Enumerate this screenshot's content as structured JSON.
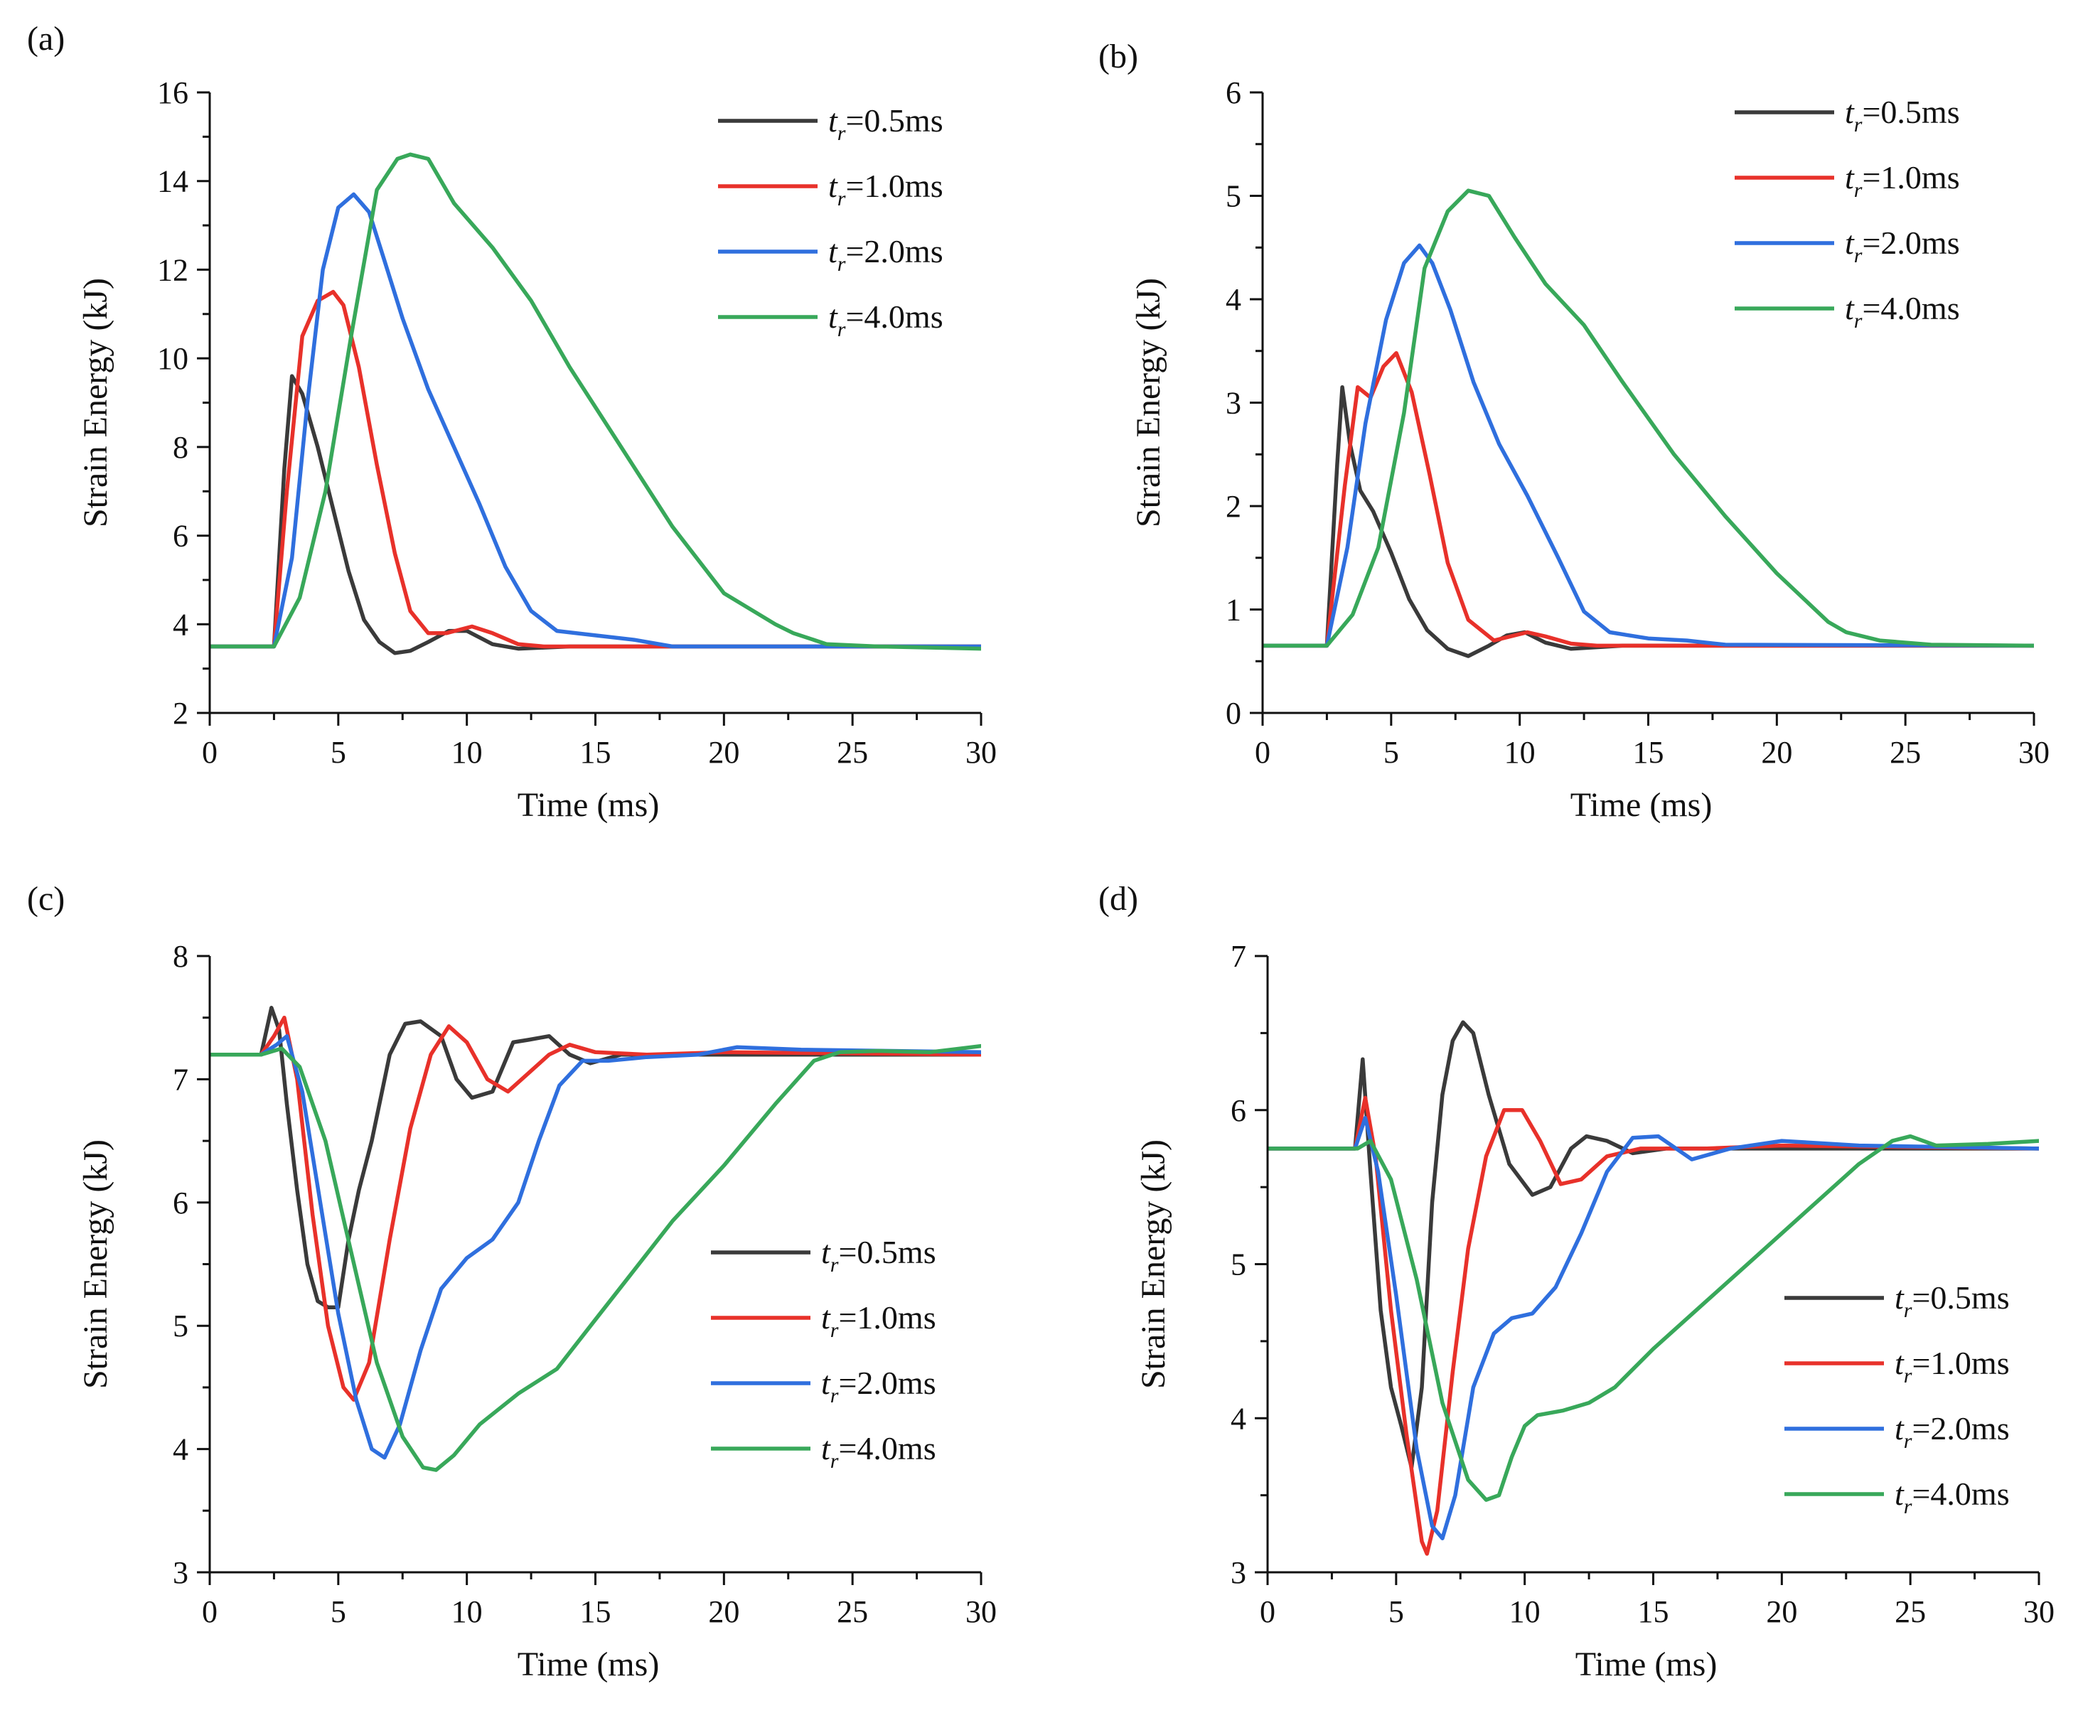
{
  "figure": {
    "colors": {
      "0.5": "#3a3a3a",
      "1.0": "#e8312a",
      "2.0": "#2f6fde",
      "4.0": "#38a85a"
    }
  },
  "chart_data": [
    {
      "type": "line",
      "panel_label": "(a)",
      "xlabel": "Time (ms)",
      "ylabel": "Strain Energy (kJ)",
      "xlim": [
        0,
        30
      ],
      "ylim": [
        2,
        16
      ],
      "xticks": [
        0,
        5,
        10,
        15,
        20,
        25,
        30
      ],
      "yticks": [
        2,
        4,
        6,
        8,
        10,
        12,
        14,
        16
      ],
      "legend_position": "top-right",
      "series": [
        {
          "name": "tr=0.5ms",
          "legend_var": "t",
          "legend_sub": "r",
          "legend_value": "=0.5ms",
          "color": "#3a3a3a",
          "x": [
            0,
            2.5,
            2.9,
            3.2,
            3.6,
            4.2,
            4.8,
            5.4,
            6.0,
            6.6,
            7.2,
            7.8,
            8.5,
            9.3,
            10.0,
            11.0,
            12.0,
            14.0,
            18.0,
            25.0,
            30.0
          ],
          "y": [
            3.5,
            3.5,
            7.5,
            9.6,
            9.2,
            8.0,
            6.6,
            5.2,
            4.1,
            3.6,
            3.35,
            3.4,
            3.6,
            3.85,
            3.85,
            3.55,
            3.45,
            3.5,
            3.5,
            3.5,
            3.5
          ]
        },
        {
          "name": "tr=1.0ms",
          "legend_var": "t",
          "legend_sub": "r",
          "legend_value": "=1.0ms",
          "color": "#e8312a",
          "x": [
            0,
            2.5,
            3.0,
            3.6,
            4.2,
            4.8,
            5.2,
            5.8,
            6.5,
            7.2,
            7.8,
            8.5,
            9.2,
            10.2,
            11.0,
            12.0,
            13.0,
            15.0,
            20.0,
            30.0
          ],
          "y": [
            3.5,
            3.5,
            7.0,
            10.5,
            11.3,
            11.5,
            11.2,
            9.8,
            7.6,
            5.6,
            4.3,
            3.8,
            3.8,
            3.95,
            3.8,
            3.55,
            3.5,
            3.5,
            3.5,
            3.5
          ]
        },
        {
          "name": "tr=2.0ms",
          "legend_var": "t",
          "legend_sub": "r",
          "legend_value": "=2.0ms",
          "color": "#2f6fde",
          "x": [
            0,
            2.5,
            3.2,
            3.8,
            4.4,
            5.0,
            5.6,
            6.2,
            6.8,
            7.5,
            8.5,
            9.5,
            10.5,
            11.5,
            12.5,
            13.5,
            15.0,
            16.5,
            18.0,
            30.0
          ],
          "y": [
            3.5,
            3.5,
            5.5,
            9.0,
            12.0,
            13.4,
            13.7,
            13.3,
            12.2,
            10.9,
            9.3,
            8.0,
            6.7,
            5.3,
            4.3,
            3.85,
            3.75,
            3.65,
            3.5,
            3.5
          ]
        },
        {
          "name": "tr=4.0ms",
          "legend_var": "t",
          "legend_sub": "r",
          "legend_value": "=4.0ms",
          "color": "#38a85a",
          "x": [
            0,
            2.5,
            3.5,
            4.5,
            5.5,
            6.5,
            7.3,
            7.8,
            8.5,
            9.5,
            11.0,
            12.5,
            14.0,
            16.0,
            18.0,
            20.0,
            22.0,
            22.7,
            24.0,
            26.0,
            30.0
          ],
          "y": [
            3.5,
            3.5,
            4.6,
            7.0,
            10.5,
            13.8,
            14.5,
            14.6,
            14.5,
            13.5,
            12.5,
            11.3,
            9.8,
            8.0,
            6.2,
            4.7,
            4.0,
            3.8,
            3.55,
            3.5,
            3.45
          ]
        }
      ]
    },
    {
      "type": "line",
      "panel_label": "(b)",
      "xlabel": "Time (ms)",
      "ylabel": "Strain Energy (kJ)",
      "xlim": [
        0,
        30
      ],
      "ylim": [
        0,
        6
      ],
      "xticks": [
        0,
        5,
        10,
        15,
        20,
        25,
        30
      ],
      "yticks": [
        0,
        1,
        2,
        3,
        4,
        5,
        6
      ],
      "legend_position": "top-right",
      "series": [
        {
          "name": "tr=0.5ms",
          "legend_var": "t",
          "legend_sub": "r",
          "legend_value": "=0.5ms",
          "color": "#3a3a3a",
          "x": [
            0,
            2.5,
            2.9,
            3.1,
            3.4,
            3.8,
            4.3,
            5.0,
            5.7,
            6.4,
            7.2,
            8.0,
            8.8,
            9.5,
            10.2,
            11.0,
            12.0,
            14.0,
            20.0,
            30.0
          ],
          "y": [
            0.65,
            0.65,
            2.4,
            3.15,
            2.6,
            2.15,
            1.95,
            1.55,
            1.1,
            0.8,
            0.62,
            0.55,
            0.65,
            0.75,
            0.78,
            0.68,
            0.62,
            0.65,
            0.65,
            0.65
          ]
        },
        {
          "name": "tr=1.0ms",
          "legend_var": "t",
          "legend_sub": "r",
          "legend_value": "=1.0ms",
          "color": "#e8312a",
          "x": [
            0,
            2.5,
            3.2,
            3.7,
            4.2,
            4.7,
            5.2,
            5.8,
            6.5,
            7.2,
            8.0,
            9.0,
            10.3,
            11.0,
            12.0,
            13.0,
            15.0,
            30.0
          ],
          "y": [
            0.65,
            0.65,
            2.2,
            3.15,
            3.05,
            3.35,
            3.48,
            3.1,
            2.3,
            1.45,
            0.9,
            0.7,
            0.78,
            0.74,
            0.67,
            0.65,
            0.65,
            0.65
          ]
        },
        {
          "name": "tr=2.0ms",
          "legend_var": "t",
          "legend_sub": "r",
          "legend_value": "=2.0ms",
          "color": "#2f6fde",
          "x": [
            0,
            2.5,
            3.3,
            4.0,
            4.8,
            5.5,
            6.1,
            6.6,
            7.3,
            8.2,
            9.2,
            10.3,
            11.5,
            12.5,
            13.5,
            15.0,
            16.5,
            18.0,
            30.0
          ],
          "y": [
            0.65,
            0.65,
            1.6,
            2.8,
            3.8,
            4.35,
            4.52,
            4.35,
            3.9,
            3.2,
            2.6,
            2.1,
            1.5,
            0.98,
            0.78,
            0.72,
            0.7,
            0.66,
            0.65
          ]
        },
        {
          "name": "tr=4.0ms",
          "legend_var": "t",
          "legend_sub": "r",
          "legend_value": "=4.0ms",
          "color": "#38a85a",
          "x": [
            0,
            2.5,
            3.5,
            4.5,
            5.5,
            6.3,
            7.2,
            8.0,
            8.8,
            9.8,
            11.0,
            12.5,
            14.0,
            16.0,
            18.0,
            20.0,
            22.0,
            22.7,
            24.0,
            26.0,
            30.0
          ],
          "y": [
            0.65,
            0.65,
            0.95,
            1.6,
            2.9,
            4.3,
            4.85,
            5.05,
            5.0,
            4.6,
            4.15,
            3.75,
            3.2,
            2.5,
            1.9,
            1.35,
            0.88,
            0.78,
            0.7,
            0.66,
            0.65
          ]
        }
      ]
    },
    {
      "type": "line",
      "panel_label": "(c)",
      "xlabel": "Time (ms)",
      "ylabel": "Strain Energy (kJ)",
      "xlim": [
        0,
        30
      ],
      "ylim": [
        3,
        8
      ],
      "xticks": [
        0,
        5,
        10,
        15,
        20,
        25,
        30
      ],
      "yticks": [
        3,
        4,
        5,
        6,
        7,
        8
      ],
      "legend_position": "center-right",
      "series": [
        {
          "name": "tr=0.5ms",
          "legend_var": "t",
          "legend_sub": "r",
          "legend_value": "=0.5ms",
          "color": "#3a3a3a",
          "x": [
            0,
            2.0,
            2.4,
            2.7,
            3.0,
            3.4,
            3.8,
            4.2,
            4.6,
            5.0,
            5.4,
            5.8,
            6.3,
            7.0,
            7.6,
            8.2,
            9.0,
            9.6,
            10.2,
            11.0,
            11.8,
            12.4,
            13.2,
            14.0,
            14.8,
            16.0,
            18.0,
            22.0,
            30.0
          ],
          "y": [
            7.2,
            7.2,
            7.58,
            7.4,
            6.8,
            6.1,
            5.5,
            5.2,
            5.15,
            5.15,
            5.7,
            6.1,
            6.5,
            7.2,
            7.45,
            7.47,
            7.35,
            7.0,
            6.85,
            6.9,
            7.3,
            7.32,
            7.35,
            7.2,
            7.13,
            7.2,
            7.2,
            7.2,
            7.2
          ]
        },
        {
          "name": "tr=1.0ms",
          "legend_var": "t",
          "legend_sub": "r",
          "legend_value": "=1.0ms",
          "color": "#e8312a",
          "x": [
            0,
            2.0,
            2.5,
            2.9,
            3.4,
            4.0,
            4.6,
            5.2,
            5.6,
            6.2,
            7.0,
            7.8,
            8.6,
            9.3,
            10.0,
            10.8,
            11.6,
            12.4,
            13.2,
            14.0,
            15.0,
            17.0,
            20.0,
            30.0
          ],
          "y": [
            7.2,
            7.2,
            7.35,
            7.5,
            7.0,
            5.9,
            5.0,
            4.5,
            4.4,
            4.7,
            5.7,
            6.6,
            7.2,
            7.43,
            7.3,
            7.0,
            6.9,
            7.05,
            7.2,
            7.28,
            7.22,
            7.2,
            7.22,
            7.2
          ]
        },
        {
          "name": "tr=2.0ms",
          "legend_var": "t",
          "legend_sub": "r",
          "legend_value": "=2.0ms",
          "color": "#2f6fde",
          "x": [
            0,
            2.0,
            2.6,
            3.0,
            3.6,
            4.3,
            5.0,
            5.7,
            6.3,
            6.8,
            7.4,
            8.2,
            9.0,
            10.0,
            11.0,
            12.0,
            12.8,
            13.6,
            14.5,
            15.5,
            17.0,
            19.0,
            20.5,
            23.0,
            30.0
          ],
          "y": [
            7.2,
            7.2,
            7.28,
            7.35,
            6.9,
            6.0,
            5.1,
            4.4,
            4.0,
            3.93,
            4.2,
            4.8,
            5.3,
            5.55,
            5.7,
            6.0,
            6.5,
            6.95,
            7.15,
            7.15,
            7.18,
            7.2,
            7.26,
            7.24,
            7.22
          ]
        },
        {
          "name": "tr=4.0ms",
          "legend_var": "t",
          "legend_sub": "r",
          "legend_value": "=4.0ms",
          "color": "#38a85a",
          "x": [
            0,
            2.0,
            2.8,
            3.5,
            4.5,
            5.5,
            6.5,
            7.5,
            8.3,
            8.8,
            9.5,
            10.5,
            12.0,
            13.5,
            15.0,
            16.5,
            18.0,
            20.0,
            22.0,
            23.5,
            24.5,
            26.0,
            28.0,
            30.0
          ],
          "y": [
            7.2,
            7.2,
            7.25,
            7.1,
            6.5,
            5.6,
            4.7,
            4.1,
            3.85,
            3.83,
            3.95,
            4.2,
            4.45,
            4.65,
            5.05,
            5.45,
            5.85,
            6.3,
            6.8,
            7.15,
            7.22,
            7.23,
            7.22,
            7.27
          ]
        }
      ]
    },
    {
      "type": "line",
      "panel_label": "(d)",
      "xlabel": "Time (ms)",
      "ylabel": "Strain Energy (kJ)",
      "xlim": [
        0,
        30
      ],
      "ylim": [
        3,
        7
      ],
      "xticks": [
        0,
        5,
        10,
        15,
        20,
        25,
        30
      ],
      "yticks": [
        3,
        4,
        5,
        6,
        7
      ],
      "legend_position": "bottom-right",
      "series": [
        {
          "name": "tr=0.5ms",
          "legend_var": "t",
          "legend_sub": "r",
          "legend_value": "=0.5ms",
          "color": "#3a3a3a",
          "x": [
            0,
            3.4,
            3.7,
            4.0,
            4.4,
            4.8,
            5.2,
            5.6,
            6.0,
            6.4,
            6.8,
            7.2,
            7.6,
            8.0,
            8.6,
            9.4,
            10.3,
            11.0,
            11.8,
            12.4,
            13.2,
            14.2,
            15.5,
            18.0,
            22.0,
            30.0
          ],
          "y": [
            5.75,
            5.75,
            6.33,
            5.6,
            4.7,
            4.2,
            3.95,
            3.68,
            4.2,
            5.4,
            6.1,
            6.45,
            6.57,
            6.5,
            6.1,
            5.65,
            5.45,
            5.5,
            5.75,
            5.83,
            5.8,
            5.72,
            5.75,
            5.75,
            5.75,
            5.75
          ]
        },
        {
          "name": "tr=1.0ms",
          "legend_var": "t",
          "legend_sub": "r",
          "legend_value": "=1.0ms",
          "color": "#e8312a",
          "x": [
            0,
            3.4,
            3.8,
            4.2,
            4.8,
            5.4,
            6.0,
            6.2,
            6.6,
            7.2,
            7.8,
            8.5,
            9.2,
            9.9,
            10.6,
            11.4,
            12.2,
            13.2,
            14.5,
            17.0,
            20.0,
            30.0
          ],
          "y": [
            5.75,
            5.75,
            6.08,
            5.7,
            4.7,
            3.9,
            3.2,
            3.12,
            3.4,
            4.3,
            5.1,
            5.7,
            6.0,
            6.0,
            5.8,
            5.52,
            5.55,
            5.7,
            5.75,
            5.75,
            5.77,
            5.75
          ]
        },
        {
          "name": "tr=2.0ms",
          "legend_var": "t",
          "legend_sub": "r",
          "legend_value": "=2.0ms",
          "color": "#2f6fde",
          "x": [
            0,
            3.4,
            3.8,
            4.3,
            5.0,
            5.8,
            6.4,
            6.8,
            7.3,
            8.0,
            8.8,
            9.5,
            10.3,
            11.2,
            12.2,
            13.2,
            14.2,
            15.2,
            16.5,
            18.0,
            20.0,
            23.0,
            30.0
          ],
          "y": [
            5.75,
            5.75,
            5.95,
            5.6,
            4.8,
            3.8,
            3.3,
            3.22,
            3.5,
            4.2,
            4.55,
            4.65,
            4.68,
            4.85,
            5.2,
            5.6,
            5.82,
            5.83,
            5.68,
            5.75,
            5.8,
            5.77,
            5.75
          ]
        },
        {
          "name": "tr=4.0ms",
          "legend_var": "t",
          "legend_sub": "r",
          "legend_value": "=4.0ms",
          "color": "#38a85a",
          "x": [
            0,
            3.5,
            4.0,
            4.8,
            5.8,
            6.8,
            7.8,
            8.5,
            9.0,
            9.5,
            10.0,
            10.5,
            11.5,
            12.5,
            13.5,
            15.0,
            17.0,
            19.0,
            21.0,
            23.0,
            24.3,
            25.0,
            26.0,
            28.0,
            30.0
          ],
          "y": [
            5.75,
            5.75,
            5.8,
            5.55,
            4.9,
            4.1,
            3.6,
            3.47,
            3.5,
            3.75,
            3.95,
            4.02,
            4.05,
            4.1,
            4.2,
            4.45,
            4.75,
            5.05,
            5.35,
            5.65,
            5.8,
            5.83,
            5.77,
            5.78,
            5.8
          ]
        }
      ]
    }
  ]
}
